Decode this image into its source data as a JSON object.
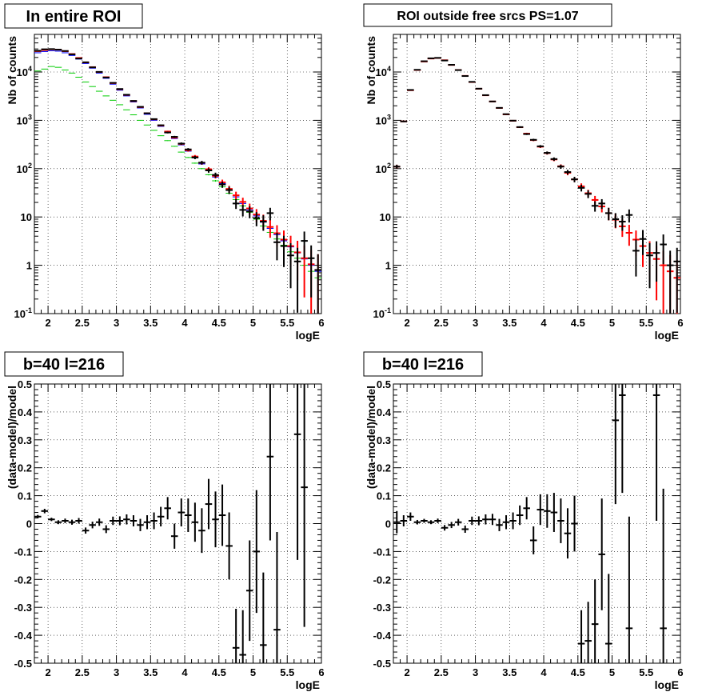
{
  "chart_data": [
    {
      "type": "scatter",
      "title": "In entire ROI",
      "xlabel": "logE",
      "ylabel": "Nb of counts",
      "yscale": "log",
      "xlim": [
        1.8,
        6.0
      ],
      "ylim": [
        0.1,
        60000
      ],
      "grid": true,
      "x_ticks": [
        "2",
        "2.5",
        "3",
        "3.5",
        "4",
        "4.5",
        "5",
        "5.5",
        "6"
      ],
      "y_ticks": [
        "10^-1",
        "1",
        "10",
        "10^2",
        "10^3",
        "10^4"
      ],
      "x_tick_values": [
        2,
        2.5,
        3,
        3.5,
        4,
        4.5,
        5,
        5.5,
        6
      ],
      "y_tick_values": [
        0.1,
        1,
        10,
        100,
        1000,
        10000
      ],
      "series": [
        {
          "color": "#00cc00",
          "x": [
            1.85,
            1.95,
            2.05,
            2.15,
            2.25,
            2.35,
            2.45,
            2.55,
            2.65,
            2.75,
            2.85,
            2.95,
            3.05,
            3.15,
            3.25,
            3.35,
            3.45,
            3.55,
            3.65,
            3.75,
            3.85,
            3.95,
            4.05,
            4.15,
            4.25,
            4.35,
            4.45,
            4.55,
            4.65,
            4.75,
            4.85,
            4.95,
            5.05,
            5.15,
            5.25,
            5.35,
            5.45,
            5.55,
            5.65,
            5.75,
            5.85,
            5.95
          ],
          "y": [
            10500,
            11500,
            13000,
            12500,
            11000,
            9500,
            7800,
            6200,
            5000,
            4000,
            3200,
            2600,
            2100,
            1650,
            1300,
            1000,
            800,
            620,
            480,
            380,
            290,
            220,
            170,
            130,
            100,
            75,
            56,
            42,
            31,
            23,
            17,
            12.5,
            9,
            6.5,
            4.8,
            3.5,
            2.6,
            1.9,
            1.4,
            1.0,
            0.75,
            0.55
          ]
        },
        {
          "color": "#0000ff",
          "x": [
            1.85,
            1.95,
            2.05,
            2.15,
            2.25,
            2.35,
            2.45,
            2.55,
            2.65,
            2.75,
            2.85,
            2.95,
            3.05,
            3.15,
            3.25,
            3.35,
            3.45,
            3.55,
            3.65,
            3.75,
            3.85,
            3.95,
            4.05,
            4.15,
            4.25,
            4.35,
            4.45,
            4.55,
            4.65,
            4.75,
            4.85,
            4.95,
            5.05,
            5.15,
            5.25,
            5.35,
            5.45,
            5.55,
            5.65,
            5.75,
            5.85,
            5.95
          ],
          "y": [
            25000,
            26500,
            27500,
            27000,
            25000,
            22000,
            18500,
            15000,
            12000,
            9500,
            7400,
            5600,
            4200,
            3200,
            2400,
            1800,
            1330,
            1000,
            750,
            560,
            420,
            310,
            230,
            170,
            125,
            92,
            67,
            49,
            36,
            26,
            19,
            14,
            10.5,
            7.8,
            5.8,
            4.3,
            3.2,
            2.4,
            1.8,
            1.35,
            1.0,
            0.75
          ]
        },
        {
          "color": "#ff0000",
          "x": [
            1.85,
            1.95,
            2.05,
            2.15,
            2.25,
            2.35,
            2.45,
            2.55,
            2.65,
            2.75,
            2.85,
            2.95,
            3.05,
            3.15,
            3.25,
            3.35,
            3.45,
            3.55,
            3.65,
            3.75,
            3.85,
            3.95,
            4.05,
            4.15,
            4.25,
            4.35,
            4.45,
            4.55,
            4.65,
            4.75,
            4.85,
            4.95,
            5.05,
            5.15,
            5.25,
            5.35,
            5.45,
            5.55,
            5.65,
            5.75,
            5.85,
            5.95
          ],
          "y": [
            27000,
            28500,
            29500,
            29000,
            27000,
            23500,
            19500,
            15800,
            12600,
            10000,
            7800,
            5900,
            4400,
            3350,
            2500,
            1880,
            1400,
            1050,
            780,
            585,
            440,
            325,
            240,
            178,
            132,
            97,
            71,
            52,
            38,
            28,
            20.5,
            15,
            11.2,
            8.3,
            6.2,
            4.6,
            3.4,
            2.5,
            1.85,
            1.4,
            1.05,
            0.8
          ]
        },
        {
          "color": "#000000",
          "x": [
            1.85,
            1.95,
            2.05,
            2.15,
            2.25,
            2.35,
            2.45,
            2.55,
            2.65,
            2.75,
            2.85,
            2.95,
            3.05,
            3.15,
            3.25,
            3.35,
            3.45,
            3.55,
            3.65,
            3.75,
            3.85,
            3.95,
            4.05,
            4.15,
            4.25,
            4.35,
            4.45,
            4.55,
            4.65,
            4.75,
            4.85,
            4.95,
            5.05,
            5.15,
            5.25,
            5.35,
            5.45,
            5.55,
            5.65,
            5.75,
            5.85,
            5.95
          ],
          "y": [
            27500,
            29500,
            29800,
            29000,
            27200,
            23200,
            19000,
            15900,
            12500,
            10050,
            7700,
            5950,
            4450,
            3380,
            2520,
            1900,
            1400,
            1060,
            790,
            560,
            455,
            330,
            250,
            170,
            133,
            92,
            74,
            47,
            36,
            19,
            14,
            13,
            9.5,
            8,
            12,
            3,
            2.5,
            1.6,
            1.2,
            3.2,
            1.4,
            0.8
          ]
        }
      ]
    },
    {
      "type": "scatter",
      "title": "ROI outside free srcs PS=1.07",
      "xlabel": "logE",
      "ylabel": "Nb of counts",
      "yscale": "log",
      "xlim": [
        1.8,
        6.0
      ],
      "ylim": [
        0.1,
        60000
      ],
      "grid": true,
      "x_ticks": [
        "2",
        "2.5",
        "3",
        "3.5",
        "4",
        "4.5",
        "5",
        "5.5",
        "6"
      ],
      "y_ticks": [
        "10^-1",
        "1",
        "10",
        "10^2",
        "10^3",
        "10^4"
      ],
      "x_tick_values": [
        2,
        2.5,
        3,
        3.5,
        4,
        4.5,
        5,
        5.5,
        6
      ],
      "y_tick_values": [
        0.1,
        1,
        10,
        100,
        1000,
        10000
      ],
      "series": [
        {
          "color": "#ff0000",
          "x": [
            1.85,
            1.95,
            2.05,
            2.15,
            2.25,
            2.35,
            2.45,
            2.55,
            2.65,
            2.75,
            2.85,
            2.95,
            3.05,
            3.15,
            3.25,
            3.35,
            3.45,
            3.55,
            3.65,
            3.75,
            3.85,
            3.95,
            4.05,
            4.15,
            4.25,
            4.35,
            4.45,
            4.55,
            4.65,
            4.75,
            4.85,
            4.95,
            5.05,
            5.15,
            5.25,
            5.35,
            5.45,
            5.55,
            5.65,
            5.75,
            5.85,
            5.95
          ],
          "y": [
            110,
            950,
            4200,
            11000,
            16500,
            19000,
            19500,
            17500,
            14000,
            11000,
            8300,
            6200,
            4500,
            3300,
            2450,
            1800,
            1330,
            980,
            720,
            530,
            390,
            285,
            210,
            155,
            112,
            82,
            60,
            43,
            31,
            22.5,
            16.5,
            12,
            8.8,
            6.4,
            4.7,
            3.4,
            2.5,
            1.8,
            1.35,
            1.0,
            0.75,
            0.55
          ]
        },
        {
          "color": "#000000",
          "x": [
            1.85,
            1.95,
            2.05,
            2.15,
            2.25,
            2.35,
            2.45,
            2.55,
            2.65,
            2.75,
            2.85,
            2.95,
            3.05,
            3.15,
            3.25,
            3.35,
            3.45,
            3.55,
            3.65,
            3.75,
            3.85,
            3.95,
            4.05,
            4.15,
            4.25,
            4.35,
            4.45,
            4.55,
            4.65,
            4.75,
            4.85,
            4.95,
            5.05,
            5.15,
            5.25,
            5.35,
            5.45,
            5.55,
            5.65,
            5.75,
            5.85,
            5.95
          ],
          "y": [
            110,
            950,
            4250,
            11100,
            16700,
            19200,
            19600,
            17300,
            14100,
            10950,
            8250,
            6250,
            4520,
            3320,
            2460,
            1810,
            1340,
            985,
            725,
            520,
            395,
            290,
            212,
            158,
            110,
            85,
            60,
            40,
            30,
            17,
            19,
            12,
            9,
            8,
            11,
            2,
            3.5,
            1.6,
            1.8,
            2.7,
            1.0,
            1.2
          ]
        }
      ]
    },
    {
      "type": "scatter",
      "title": "b=40 l=216",
      "xlabel": "logE",
      "ylabel": "(data-model)/model",
      "xlim": [
        1.8,
        6.0
      ],
      "ylim": [
        -0.5,
        0.5
      ],
      "grid": true,
      "x_ticks": [
        "2",
        "2.5",
        "3",
        "3.5",
        "4",
        "4.5",
        "5",
        "5.5",
        "6"
      ],
      "y_ticks": [
        "-0.5",
        "-0.4",
        "-0.3",
        "-0.2",
        "-0.1",
        "0",
        "0.1",
        "0.2",
        "0.3",
        "0.4",
        "0.5"
      ],
      "x_tick_values": [
        2,
        2.5,
        3,
        3.5,
        4,
        4.5,
        5,
        5.5,
        6
      ],
      "y_tick_values": [
        -0.5,
        -0.4,
        -0.3,
        -0.2,
        -0.1,
        0,
        0.1,
        0.2,
        0.3,
        0.4,
        0.5
      ],
      "series": [
        {
          "color": "#000000",
          "x": [
            1.85,
            1.95,
            2.05,
            2.15,
            2.25,
            2.35,
            2.45,
            2.55,
            2.65,
            2.75,
            2.85,
            2.95,
            3.05,
            3.15,
            3.25,
            3.35,
            3.45,
            3.55,
            3.65,
            3.75,
            3.85,
            3.95,
            4.05,
            4.15,
            4.25,
            4.35,
            4.45,
            4.55,
            4.65,
            4.75,
            4.85,
            4.95,
            5.05,
            5.15,
            5.25,
            5.35,
            5.65,
            5.75
          ],
          "y": [
            0.025,
            0.045,
            0.015,
            0.005,
            0.01,
            0.005,
            0.01,
            -0.025,
            -0.005,
            0.005,
            -0.02,
            0.01,
            0.01,
            0.015,
            0.01,
            -0.005,
            0.005,
            0.01,
            0.025,
            0.055,
            -0.045,
            0.04,
            0.03,
            0.005,
            -0.025,
            0.07,
            0.015,
            0.03,
            -0.08,
            -0.445,
            -0.47,
            -0.24,
            -0.1,
            -0.435,
            0.24,
            -0.38,
            0.32,
            0.13
          ],
          "yerr": [
            0.006,
            0.008,
            0.006,
            0.007,
            0.008,
            0.009,
            0.01,
            0.011,
            0.012,
            0.013,
            0.014,
            0.015,
            0.016,
            0.018,
            0.02,
            0.022,
            0.025,
            0.03,
            0.035,
            0.04,
            0.045,
            0.05,
            0.06,
            0.07,
            0.08,
            0.09,
            0.1,
            0.11,
            0.12,
            0.14,
            0.16,
            0.18,
            0.22,
            0.26,
            0.3,
            0.35,
            0.45,
            0.5
          ]
        }
      ]
    },
    {
      "type": "scatter",
      "title": "b=40 l=216",
      "xlabel": "logE",
      "ylabel": "(data-model)/model",
      "xlim": [
        1.8,
        6.0
      ],
      "ylim": [
        -0.5,
        0.5
      ],
      "grid": true,
      "x_ticks": [
        "2",
        "2.5",
        "3",
        "3.5",
        "4",
        "4.5",
        "5",
        "5.5",
        "6"
      ],
      "y_ticks": [
        "-0.5",
        "-0.4",
        "-0.3",
        "-0.2",
        "-0.1",
        "0",
        "0.1",
        "0.2",
        "0.3",
        "0.4",
        "0.5"
      ],
      "x_tick_values": [
        2,
        2.5,
        3,
        3.5,
        4,
        4.5,
        5,
        5.5,
        6
      ],
      "y_tick_values": [
        -0.5,
        -0.4,
        -0.3,
        -0.2,
        -0.1,
        0,
        0.1,
        0.2,
        0.3,
        0.4,
        0.5
      ],
      "series": [
        {
          "color": "#000000",
          "x": [
            1.85,
            1.95,
            2.05,
            2.15,
            2.25,
            2.35,
            2.45,
            2.55,
            2.65,
            2.75,
            2.85,
            2.95,
            3.05,
            3.15,
            3.25,
            3.35,
            3.45,
            3.55,
            3.65,
            3.75,
            3.85,
            3.95,
            4.05,
            4.15,
            4.25,
            4.35,
            4.45,
            4.55,
            4.65,
            4.75,
            4.85,
            4.95,
            5.05,
            5.15,
            5.25,
            5.65,
            5.75
          ],
          "y": [
            0.005,
            0.01,
            0.025,
            0.005,
            0.01,
            0.005,
            0.01,
            -0.015,
            -0.005,
            0.005,
            -0.02,
            0.01,
            0.01,
            0.015,
            0.015,
            -0.005,
            0.005,
            0.01,
            0.03,
            0.055,
            -0.06,
            0.05,
            0.045,
            0.04,
            0.01,
            -0.035,
            0.0,
            -0.43,
            -0.42,
            -0.36,
            -0.11,
            -0.43,
            0.37,
            0.46,
            -0.375,
            0.46,
            -0.375
          ],
          "yerr": [
            0.04,
            0.02,
            0.015,
            0.008,
            0.007,
            0.007,
            0.008,
            0.01,
            0.011,
            0.012,
            0.013,
            0.015,
            0.016,
            0.018,
            0.02,
            0.022,
            0.025,
            0.03,
            0.035,
            0.04,
            0.05,
            0.055,
            0.06,
            0.07,
            0.08,
            0.09,
            0.1,
            0.12,
            0.14,
            0.16,
            0.2,
            0.25,
            0.3,
            0.35,
            0.4,
            0.45,
            0.5
          ]
        }
      ]
    }
  ]
}
